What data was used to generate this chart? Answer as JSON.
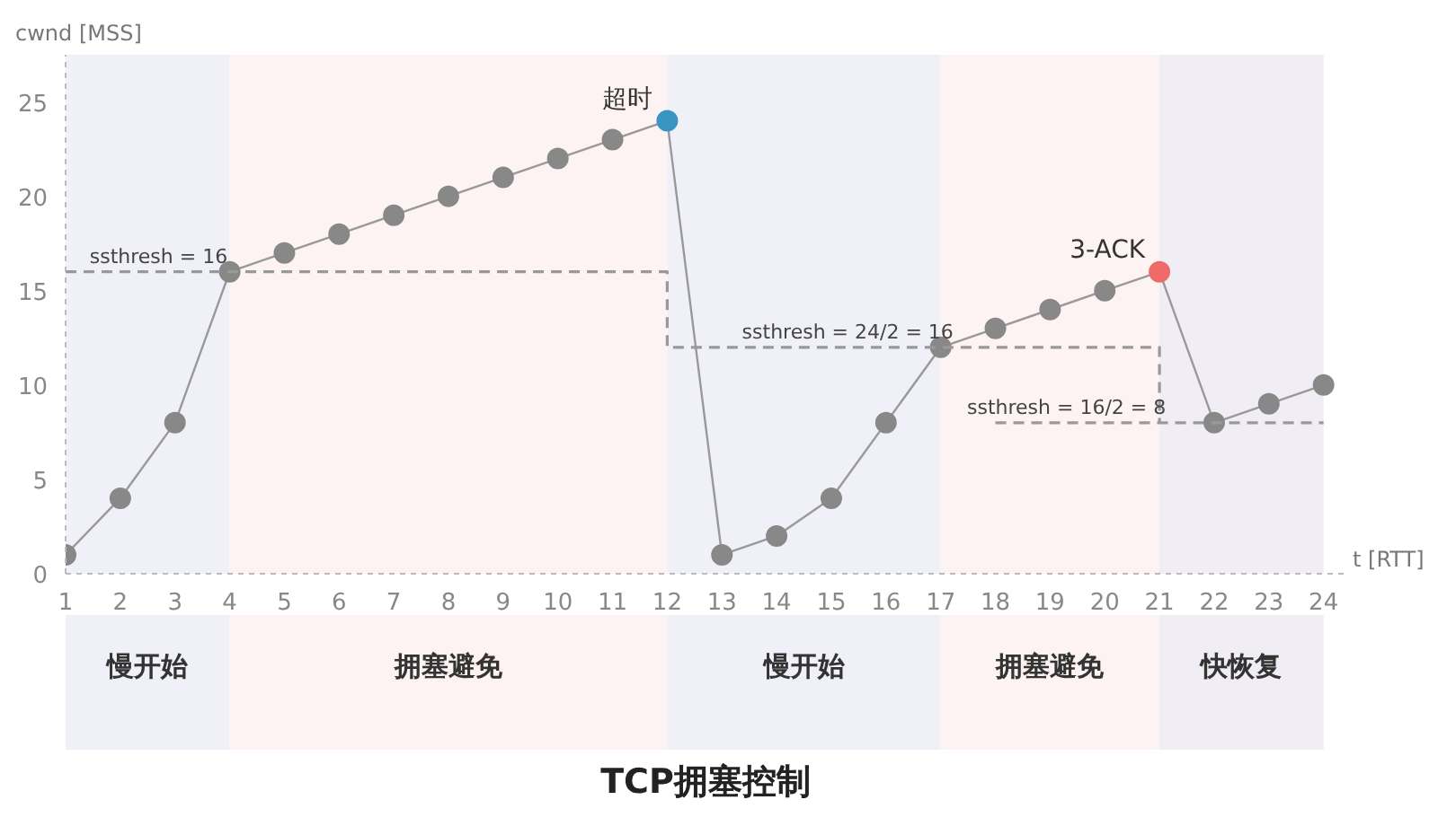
{
  "chart_data": {
    "type": "line",
    "title": "TCP拥塞控制",
    "xlabel": "t [RTT]",
    "ylabel": "cwnd [MSS]",
    "x": [
      1,
      2,
      3,
      4,
      5,
      6,
      7,
      8,
      9,
      10,
      11,
      12,
      13,
      14,
      15,
      16,
      17,
      18,
      19,
      20,
      21,
      22,
      23,
      24
    ],
    "series": [
      {
        "type": "line",
        "color": "#999999",
        "marker": "circle",
        "values": [
          1,
          4,
          8,
          16,
          17,
          18,
          19,
          20,
          21,
          22,
          23,
          24,
          1,
          2,
          4,
          8,
          12,
          13,
          14,
          15,
          16,
          8,
          9,
          10
        ],
        "colors": [
          "#888888",
          "#888888",
          "#888888",
          "#888888",
          "#888888",
          "#888888",
          "#888888",
          "#888888",
          "#888888",
          "#888888",
          "#888888",
          "#3a95c2",
          "#888888",
          "#888888",
          "#888888",
          "#888888",
          "#888888",
          "#888888",
          "#888888",
          "#888888",
          "#f06a6a",
          "#888888",
          "#888888",
          "#888888"
        ]
      },
      {
        "type": "line",
        "color": "#999999",
        "line_style": "dashed",
        "marker": "none",
        "x": [
          1,
          12,
          12,
          21,
          21
        ],
        "values": [
          16,
          16,
          12,
          12,
          8
        ]
      },
      {
        "type": "line",
        "color": "#999999",
        "line_style": "dashed",
        "marker": "none",
        "x": [
          18,
          24
        ],
        "values": [
          8,
          8
        ]
      }
    ],
    "annotations": [
      "超时",
      "3-ACK",
      {
        "text": "ssthresh = 16",
        "x": 2.7,
        "y": 16
      },
      {
        "text": "ssthresh = 24/2 = 16",
        "x": 15.3,
        "y": 12
      },
      {
        "text": "ssthresh = 16/2 = 8",
        "x": 19.3,
        "y": 8
      }
    ],
    "bands": [
      {
        "axis": "x",
        "from": 1,
        "to": 4,
        "label": "慢开始",
        "color": "#f0f0f9"
      },
      {
        "axis": "x",
        "from": 4,
        "to": 12,
        "label": "拥塞避免",
        "color": "#fdf3f3"
      },
      {
        "axis": "x",
        "from": 12,
        "to": 17,
        "label": "慢开始",
        "color": "#f0f0f9"
      },
      {
        "axis": "x",
        "from": 17,
        "to": 21,
        "label": "拥塞避免",
        "color": "#fdf3f3"
      },
      {
        "axis": "x",
        "from": 21,
        "to": 24,
        "label": "快恢复",
        "color": "#f0edf4"
      }
    ],
    "xlim": [
      1,
      24.4
    ],
    "ylim": [
      0,
      27.5
    ],
    "xticks": [
      1,
      2,
      3,
      4,
      5,
      6,
      7,
      8,
      9,
      10,
      11,
      12,
      13,
      14,
      15,
      16,
      17,
      18,
      19,
      20,
      21,
      22,
      23,
      24
    ],
    "yticks": [
      0,
      5,
      10,
      15,
      20,
      25
    ],
    "grid": false
  }
}
